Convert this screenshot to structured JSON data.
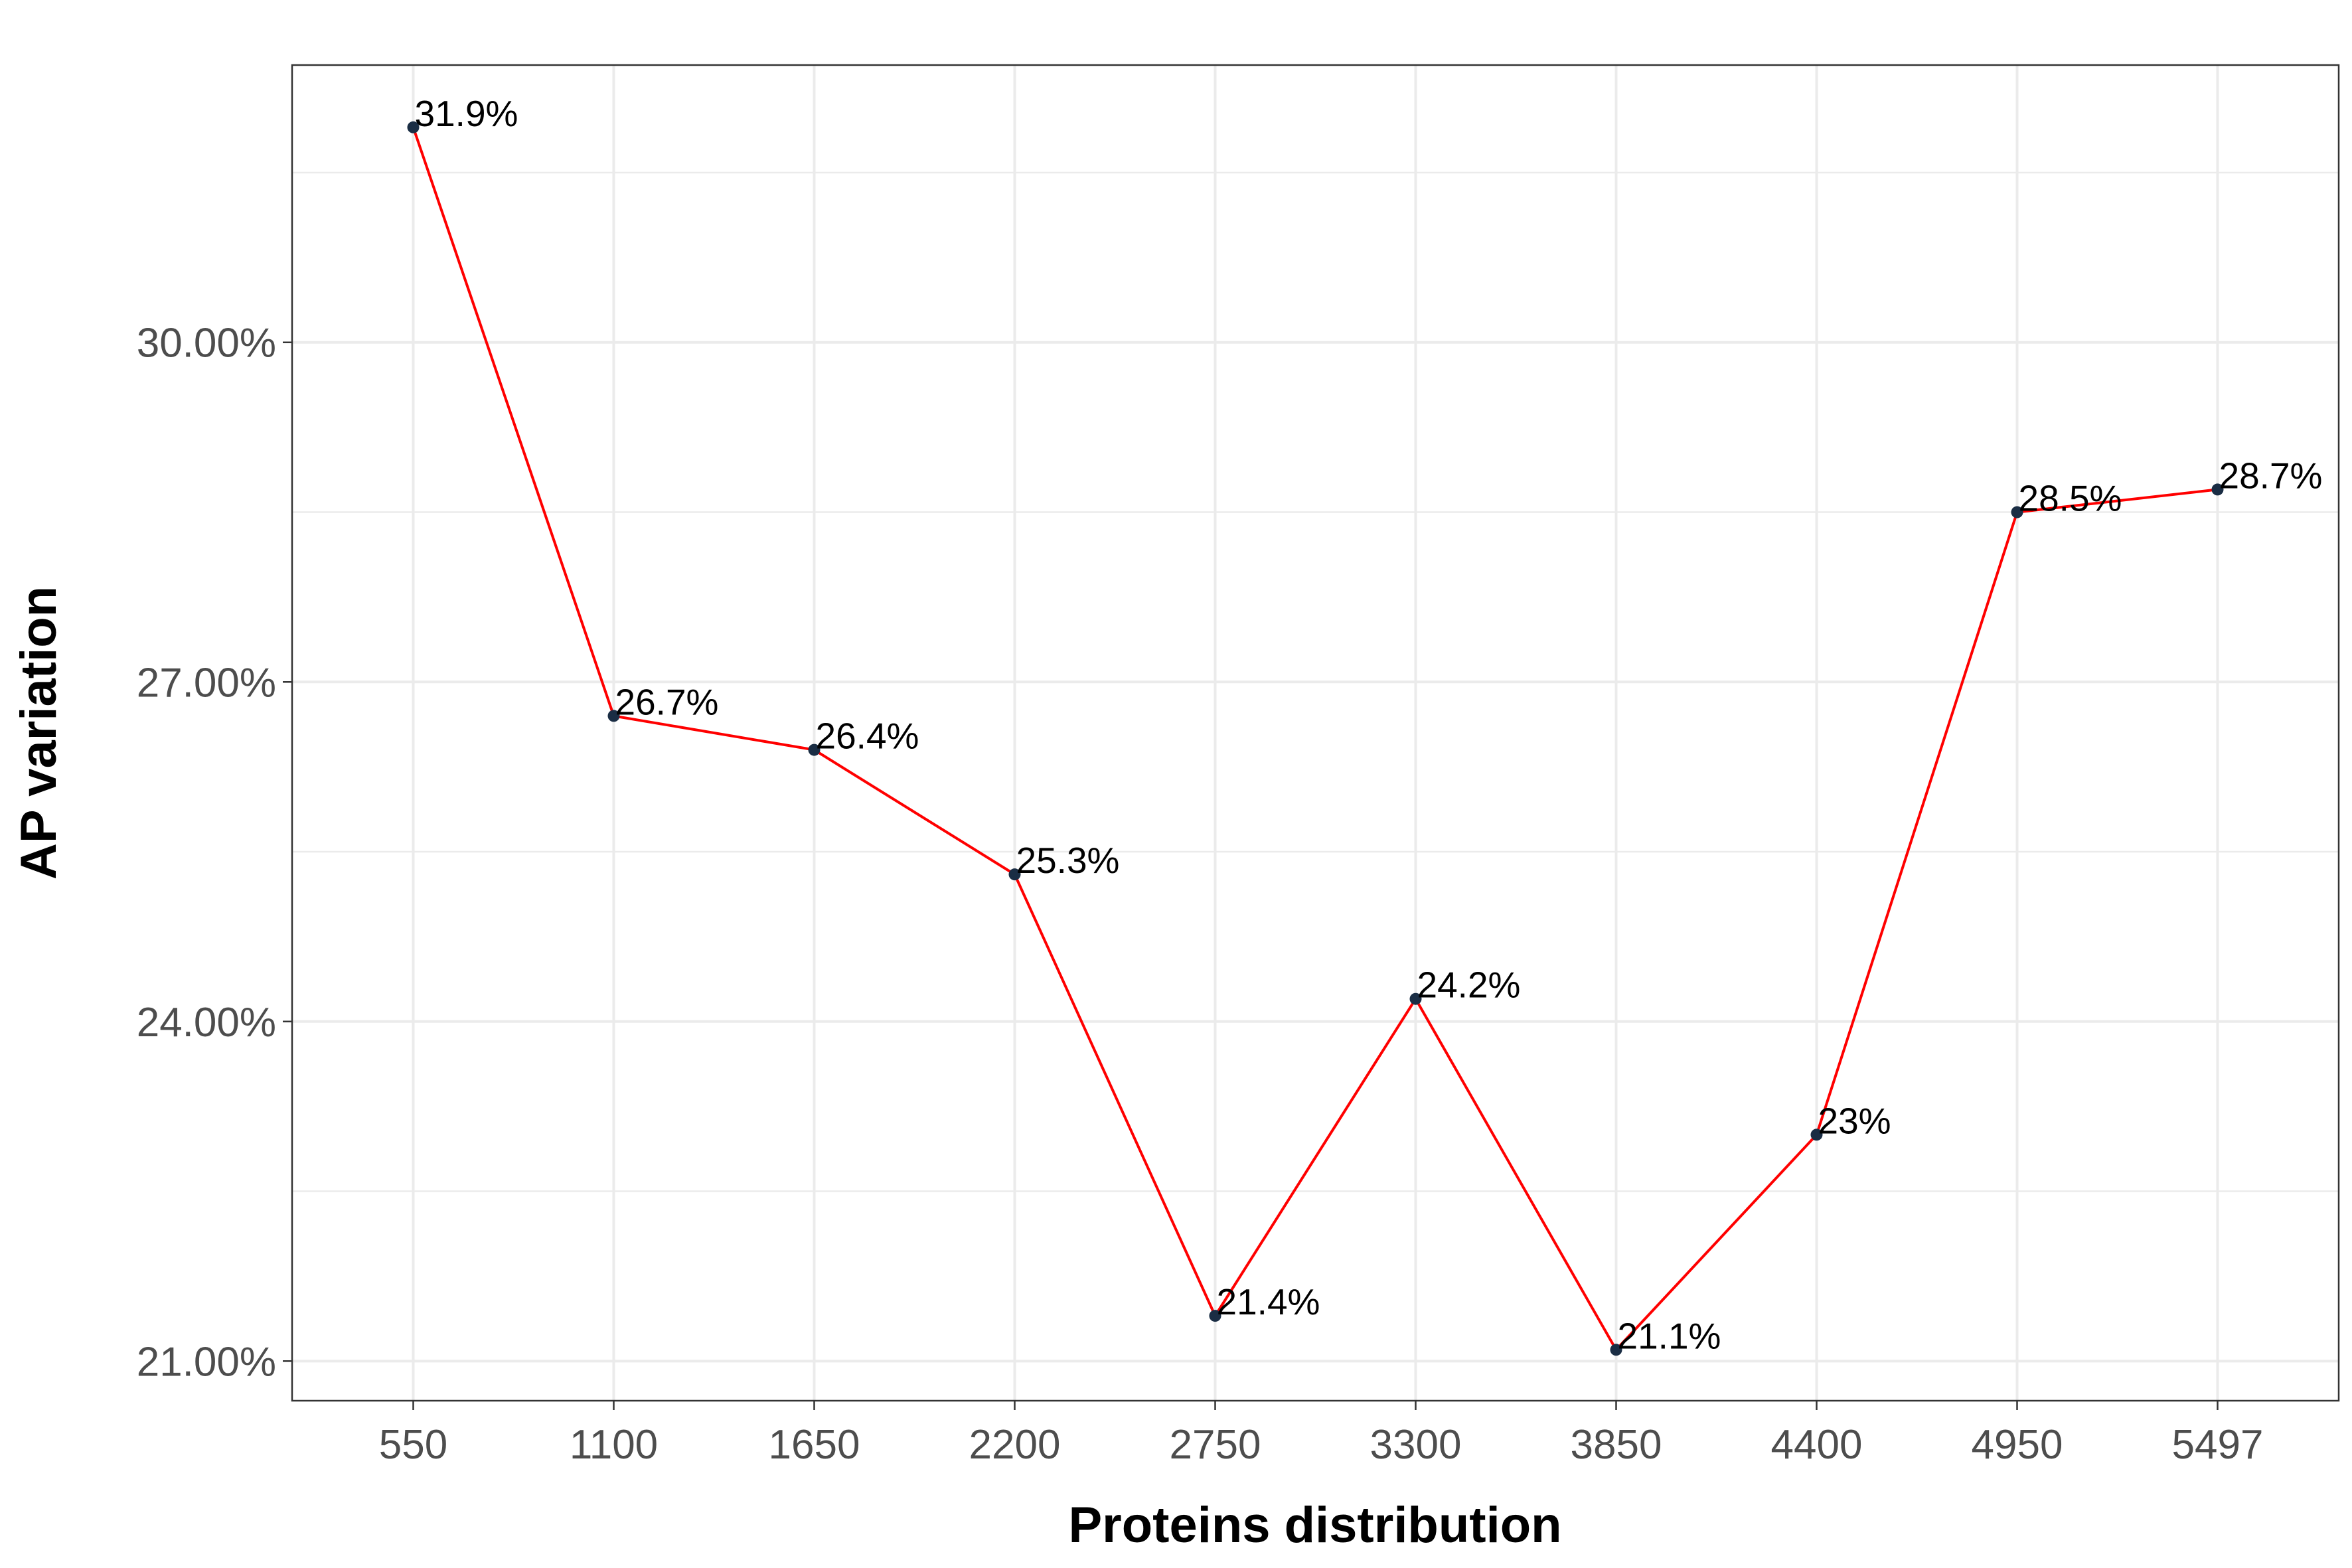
{
  "chart_data": {
    "type": "line",
    "title": "",
    "xlabel": "Proteins distribution",
    "ylabel": "AP variation",
    "categories": [
      "550",
      "1100",
      "1650",
      "2200",
      "2750",
      "3300",
      "3850",
      "4400",
      "4950",
      "5497"
    ],
    "values": [
      31.9,
      26.7,
      26.4,
      25.3,
      21.4,
      24.2,
      21.1,
      23.0,
      28.5,
      28.7
    ],
    "point_labels": [
      "31.9%",
      "26.7%",
      "26.4%",
      "25.3%",
      "21.4%",
      "24.2%",
      "21.1%",
      "23%",
      "28.5%",
      "28.7%"
    ],
    "yticks": [
      21,
      24,
      27,
      30
    ],
    "ytick_labels": [
      "21.00%",
      "24.00%",
      "27.00%",
      "30.00%"
    ],
    "ylim": [
      20.65,
      32.45
    ],
    "grid": true,
    "legend": "none",
    "line_color": "#ff0000",
    "point_color": "#1a2d44"
  }
}
